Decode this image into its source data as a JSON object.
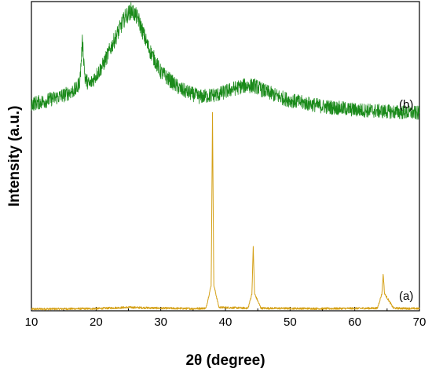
{
  "chart_data": {
    "type": "line",
    "xlabel": "2θ (degree)",
    "ylabel": "Intensity (a.u.)",
    "xlim": [
      10,
      70
    ],
    "x_ticks": [
      "10",
      "20",
      "30",
      "40",
      "50",
      "60",
      "70"
    ],
    "y_ticks_shown": false,
    "grid": false,
    "series": [
      {
        "name": "(a)",
        "color": "#d4a017",
        "x": [
          10,
          20,
          25,
          30,
          35,
          37,
          37.8,
          38.0,
          38.2,
          39,
          43.5,
          44.1,
          44.3,
          44.5,
          45.5,
          55,
          63.5,
          64.2,
          64.4,
          64.6,
          66,
          70
        ],
        "values": [
          2,
          2.5,
          4,
          3,
          2.5,
          3,
          30,
          230,
          30,
          4,
          3,
          20,
          75,
          20,
          3,
          2.5,
          3,
          20,
          43,
          20,
          3,
          2.5
        ]
      },
      {
        "name": "(b)",
        "color": "#1a8a1a",
        "x": [
          10,
          12,
          15,
          17,
          17.5,
          17.9,
          18.3,
          19,
          21,
          23,
          24.5,
          25.5,
          26.5,
          28,
          30,
          33,
          36,
          39,
          41,
          43,
          44.5,
          46,
          48,
          50,
          55,
          60,
          65,
          70
        ],
        "values": [
          241,
          244,
          251,
          258,
          268,
          315,
          270,
          263,
          285,
          318,
          342,
          350,
          340,
          308,
          278,
          258,
          249,
          252,
          258,
          262,
          262,
          256,
          250,
          245,
          238,
          234,
          232,
          230
        ]
      }
    ]
  }
}
